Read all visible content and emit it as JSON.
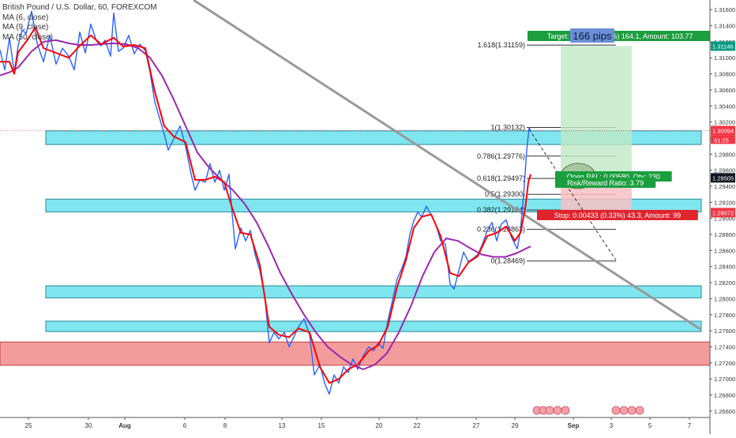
{
  "chart_data": {
    "type": "line",
    "title": "British Pound / U.S. Dollar, 60, FOREXCOM",
    "legend_items": [
      "MA (6, close)",
      "MA (9, close)",
      "MA (50, close)"
    ],
    "x_tick_labels": [
      "25",
      "30",
      "Aug",
      "6",
      "8",
      "13",
      "15",
      "20",
      "22",
      "27",
      "29",
      "Sep",
      "3",
      "5",
      "7"
    ],
    "y_ticks": [
      "1.26600",
      "1.26800",
      "1.27000",
      "1.27200",
      "1.27400",
      "1.27600",
      "1.27800",
      "1.28000",
      "1.28200",
      "1.28400",
      "1.28600",
      "1.28800",
      "1.29000",
      "1.29200",
      "1.29400",
      "1.29600",
      "1.29800",
      "1.30000",
      "1.30200",
      "1.30400",
      "1.30600",
      "1.30800",
      "1.31000",
      "1.31200",
      "1.31400",
      "1.31600"
    ],
    "ylim": [
      1.2652,
      1.3172
    ],
    "grid": false,
    "series": [
      {
        "name": "British Pound / U.S. Dollar",
        "color": "#2962ff",
        "points": [
          [
            0,
            1.311
          ],
          [
            6,
            1.3085
          ],
          [
            12,
            1.3125
          ],
          [
            18,
            1.3082
          ],
          [
            23,
            1.3115
          ],
          [
            28,
            1.3135
          ],
          [
            33,
            1.313
          ],
          [
            40,
            1.3158
          ],
          [
            47,
            1.3118
          ],
          [
            55,
            1.3095
          ],
          [
            63,
            1.3128
          ],
          [
            71,
            1.3092
          ],
          [
            79,
            1.3112
          ],
          [
            87,
            1.3102
          ],
          [
            94,
            1.3085
          ],
          [
            101,
            1.3132
          ],
          [
            108,
            1.3106
          ],
          [
            115,
            1.3142
          ],
          [
            122,
            1.3121
          ],
          [
            128,
            1.3115
          ],
          [
            133,
            1.3122
          ],
          [
            140,
            1.3102
          ],
          [
            144,
            1.3156
          ],
          [
            150,
            1.3108
          ],
          [
            156,
            1.3112
          ],
          [
            163,
            1.3128
          ],
          [
            170,
            1.3105
          ],
          [
            177,
            1.3117
          ],
          [
            184,
            1.3109
          ],
          [
            190,
            1.3082
          ],
          [
            196,
            1.3045
          ],
          [
            202,
            1.3025
          ],
          [
            208,
            1.3005
          ],
          [
            213,
            1.2985
          ],
          [
            220,
            1.2999
          ],
          [
            228,
            1.3015
          ],
          [
            235,
            1.299
          ],
          [
            242,
            1.2955
          ],
          [
            247,
            1.2935
          ],
          [
            253,
            1.2948
          ],
          [
            260,
            1.2945
          ],
          [
            266,
            1.2968
          ],
          [
            272,
            1.2945
          ],
          [
            278,
            1.296
          ],
          [
            284,
            1.2935
          ],
          [
            290,
            1.2955
          ],
          [
            294,
            1.2905
          ],
          [
            298,
            1.2862
          ],
          [
            305,
            1.2888
          ],
          [
            311,
            1.2872
          ],
          [
            317,
            1.2885
          ],
          [
            323,
            1.2855
          ],
          [
            329,
            1.2835
          ],
          [
            335,
            1.2805
          ],
          [
            341,
            1.2745
          ],
          [
            347,
            1.2758
          ],
          [
            353,
            1.275
          ],
          [
            360,
            1.2758
          ],
          [
            366,
            1.274
          ],
          [
            372,
            1.2752
          ],
          [
            378,
            1.2765
          ],
          [
            385,
            1.2775
          ],
          [
            392,
            1.2755
          ],
          [
            398,
            1.2705
          ],
          [
            405,
            1.2718
          ],
          [
            411,
            1.2695
          ],
          [
            417,
            1.2681
          ],
          [
            423,
            1.2705
          ],
          [
            429,
            1.2695
          ],
          [
            435,
            1.2715
          ],
          [
            441,
            1.2708
          ],
          [
            447,
            1.2725
          ],
          [
            453,
            1.2712
          ],
          [
            460,
            1.2729
          ],
          [
            467,
            1.274
          ],
          [
            473,
            1.2735
          ],
          [
            479,
            1.2745
          ],
          [
            485,
            1.2738
          ],
          [
            491,
            1.2772
          ],
          [
            497,
            1.2798
          ],
          [
            503,
            1.2825
          ],
          [
            509,
            1.2838
          ],
          [
            514,
            1.2852
          ],
          [
            519,
            1.288
          ],
          [
            524,
            1.2897
          ],
          [
            529,
            1.2908
          ],
          [
            534,
            1.2902
          ],
          [
            540,
            1.2915
          ],
          [
            546,
            1.2904
          ],
          [
            552,
            1.2892
          ],
          [
            558,
            1.2872
          ],
          [
            564,
            1.2868
          ],
          [
            570,
            1.2818
          ],
          [
            575,
            1.2812
          ],
          [
            581,
            1.2835
          ],
          [
            587,
            1.2858
          ],
          [
            593,
            1.2846
          ],
          [
            599,
            1.285
          ],
          [
            605,
            1.2855
          ],
          [
            611,
            1.2868
          ],
          [
            617,
            1.2885
          ],
          [
            623,
            1.2895
          ],
          [
            629,
            1.2872
          ],
          [
            635,
            1.2893
          ],
          [
            641,
            1.2898
          ],
          [
            647,
            1.2878
          ],
          [
            652,
            1.2868
          ],
          [
            655,
            1.2862
          ],
          [
            659,
            1.2885
          ],
          [
            663,
            1.2928
          ],
          [
            667,
            1.2985
          ],
          [
            670,
            1.3013
          ],
          [
            672,
            1.3009
          ]
        ]
      },
      {
        "name": "MA (6, close)",
        "color": "#ff0000",
        "points": [
          [
            0,
            1.3095
          ],
          [
            12,
            1.3095
          ],
          [
            18,
            1.308
          ],
          [
            23,
            1.3107
          ],
          [
            33,
            1.312
          ],
          [
            45,
            1.3138
          ],
          [
            55,
            1.3112
          ],
          [
            71,
            1.3106
          ],
          [
            87,
            1.31
          ],
          [
            101,
            1.3115
          ],
          [
            115,
            1.3128
          ],
          [
            128,
            1.3117
          ],
          [
            144,
            1.3125
          ],
          [
            156,
            1.3114
          ],
          [
            170,
            1.3116
          ],
          [
            184,
            1.3112
          ],
          [
            196,
            1.3058
          ],
          [
            208,
            1.3015
          ],
          [
            220,
            1.3002
          ],
          [
            235,
            1.2995
          ],
          [
            247,
            1.2948
          ],
          [
            260,
            1.2948
          ],
          [
            272,
            1.2952
          ],
          [
            284,
            1.2945
          ],
          [
            294,
            1.2913
          ],
          [
            305,
            1.2882
          ],
          [
            317,
            1.288
          ],
          [
            329,
            1.2842
          ],
          [
            341,
            1.2765
          ],
          [
            353,
            1.2755
          ],
          [
            366,
            1.2752
          ],
          [
            378,
            1.2763
          ],
          [
            392,
            1.2758
          ],
          [
            405,
            1.2715
          ],
          [
            417,
            1.2695
          ],
          [
            429,
            1.27
          ],
          [
            441,
            1.2712
          ],
          [
            453,
            1.2718
          ],
          [
            467,
            1.2735
          ],
          [
            479,
            1.2742
          ],
          [
            491,
            1.2765
          ],
          [
            503,
            1.2815
          ],
          [
            514,
            1.2848
          ],
          [
            524,
            1.2888
          ],
          [
            534,
            1.2902
          ],
          [
            546,
            1.2905
          ],
          [
            558,
            1.2878
          ],
          [
            570,
            1.2832
          ],
          [
            581,
            1.2828
          ],
          [
            593,
            1.2845
          ],
          [
            605,
            1.2853
          ],
          [
            617,
            1.2878
          ],
          [
            629,
            1.2882
          ],
          [
            641,
            1.289
          ],
          [
            652,
            1.2872
          ],
          [
            659,
            1.2882
          ],
          [
            665,
            1.2912
          ],
          [
            669,
            1.2945
          ],
          [
            672,
            1.2955
          ]
        ]
      },
      {
        "name": "MA (50, close)",
        "color": "#9c27b0",
        "points": [
          [
            0,
            1.3078
          ],
          [
            12,
            1.3082
          ],
          [
            23,
            1.3088
          ],
          [
            40,
            1.3108
          ],
          [
            55,
            1.312
          ],
          [
            71,
            1.3122
          ],
          [
            87,
            1.3118
          ],
          [
            101,
            1.3116
          ],
          [
            115,
            1.3116
          ],
          [
            128,
            1.3117
          ],
          [
            144,
            1.3118
          ],
          [
            160,
            1.3117
          ],
          [
            175,
            1.3112
          ],
          [
            190,
            1.31
          ],
          [
            205,
            1.3078
          ],
          [
            220,
            1.3048
          ],
          [
            235,
            1.3015
          ],
          [
            250,
            1.2982
          ],
          [
            265,
            1.2963
          ],
          [
            280,
            1.2948
          ],
          [
            295,
            1.2935
          ],
          [
            310,
            1.2918
          ],
          [
            325,
            1.2895
          ],
          [
            340,
            1.2865
          ],
          [
            355,
            1.2832
          ],
          [
            370,
            1.2805
          ],
          [
            385,
            1.278
          ],
          [
            400,
            1.2758
          ],
          [
            415,
            1.274
          ],
          [
            430,
            1.2728
          ],
          [
            445,
            1.2718
          ],
          [
            460,
            1.2712
          ],
          [
            475,
            1.2718
          ],
          [
            490,
            1.2732
          ],
          [
            505,
            1.2758
          ],
          [
            520,
            1.279
          ],
          [
            535,
            1.2828
          ],
          [
            550,
            1.2858
          ],
          [
            565,
            1.2875
          ],
          [
            580,
            1.2872
          ],
          [
            595,
            1.2863
          ],
          [
            610,
            1.2855
          ],
          [
            625,
            1.2852
          ],
          [
            640,
            1.2852
          ],
          [
            655,
            1.2857
          ],
          [
            665,
            1.2862
          ],
          [
            672,
            1.2865
          ]
        ]
      }
    ],
    "support_resistance_zones": [
      {
        "low": 1.2992,
        "high": 1.3009
      },
      {
        "low": 1.2908,
        "high": 1.2924
      },
      {
        "low": 1.2801,
        "high": 1.2816
      },
      {
        "low": 1.2759,
        "high": 1.2772
      }
    ],
    "demand_zone": {
      "low": 1.2717,
      "high": 1.2746
    },
    "trendline": {
      "start": [
        245,
        1.3172
      ],
      "end": [
        887,
        1.2762
      ]
    },
    "fibonacci": {
      "x_range": [
        622,
        780
      ],
      "levels": [
        {
          "ratio": "1.618",
          "price": 1.31159,
          "label": "1.618(1.31159)"
        },
        {
          "ratio": "1",
          "price": 1.30132,
          "label": "1(1.30132)"
        },
        {
          "ratio": "0.786",
          "price": 1.29776,
          "label": "0.786(1.29776)"
        },
        {
          "ratio": "0.618",
          "price": 1.29497,
          "label": "0.618(1.29497)"
        },
        {
          "ratio": "0.5",
          "price": 1.293,
          "label": "0.5(1.29300)"
        },
        {
          "ratio": "0.382",
          "price": 1.29104,
          "label": "0.382(1.29104)"
        },
        {
          "ratio": "0.236",
          "price": 1.28863,
          "label": "0.236(1.28863)"
        },
        {
          "ratio": "0",
          "price": 1.28469,
          "label": "0(1.28469)"
        }
      ]
    },
    "long_position": {
      "x_range": [
        710,
        800
      ],
      "entry": 1.29505,
      "target": 1.31146,
      "stop": 1.29072,
      "target_label": "Target: 0.0164 (1.27%) 164.1, Amount: 103.77",
      "entry_label": "Open P&L: 0.00580, Qty: 230",
      "ratio_label": "Risk/Reward Ratio: 3.79",
      "stop_label": "Stop: 0.00433 (0.33%) 43.3, Amount: 99"
    },
    "pips_annotation": "166 pips",
    "price_tags": [
      {
        "price": 1.31146,
        "label": "1.31146",
        "color": "#089981"
      },
      {
        "price": 1.30094,
        "label": "1.30094",
        "color": "#f23645"
      },
      {
        "price": 1.29505,
        "label": "1.29505",
        "color": "#131722"
      },
      {
        "price": 1.29072,
        "label": "1.29072",
        "color": "#f23645"
      }
    ],
    "countdown": "51:25",
    "projection_path": [
      [
        670,
        1.3011
      ],
      [
        780,
        1.2848
      ]
    ]
  }
}
